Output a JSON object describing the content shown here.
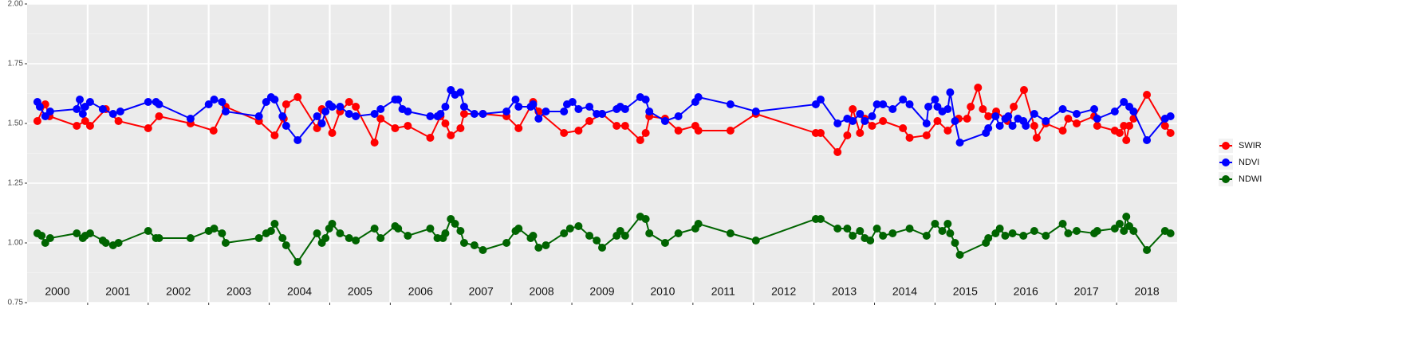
{
  "chart_data": {
    "type": "line",
    "grid": true,
    "legend": "right",
    "xlim": [
      2000,
      2019
    ],
    "xticks": [
      {
        "value": 2000.5,
        "label": "2000"
      },
      {
        "value": 2001.5,
        "label": "2001"
      },
      {
        "value": 2002.5,
        "label": "2002"
      },
      {
        "value": 2003.5,
        "label": "2003"
      },
      {
        "value": 2004.5,
        "label": "2004"
      },
      {
        "value": 2005.5,
        "label": "2005"
      },
      {
        "value": 2006.5,
        "label": "2006"
      },
      {
        "value": 2007.5,
        "label": "2007"
      },
      {
        "value": 2008.5,
        "label": "2008"
      },
      {
        "value": 2009.5,
        "label": "2009"
      },
      {
        "value": 2010.5,
        "label": "2010"
      },
      {
        "value": 2011.5,
        "label": "2011"
      },
      {
        "value": 2012.5,
        "label": "2012"
      },
      {
        "value": 2013.5,
        "label": "2013"
      },
      {
        "value": 2014.5,
        "label": "2014"
      },
      {
        "value": 2015.5,
        "label": "2015"
      },
      {
        "value": 2016.5,
        "label": "2016"
      },
      {
        "value": 2017.5,
        "label": "2017"
      },
      {
        "value": 2018.5,
        "label": "2018"
      }
    ],
    "ylim": [
      0.75,
      2.0
    ],
    "yticks": [
      {
        "value": 0.75,
        "label": "0.75"
      },
      {
        "value": 1,
        "label": "1.00"
      },
      {
        "value": 1.25,
        "label": "1.25"
      },
      {
        "value": 1.5,
        "label": "1.50"
      },
      {
        "value": 1.75,
        "label": "1.75"
      },
      {
        "value": 2,
        "label": "2.00"
      }
    ],
    "series": [
      {
        "name": "SWIR",
        "color": "#ff0000",
        "x": [
          2000.17,
          2000.3,
          2000.37,
          2000.82,
          2000.96,
          2001.04,
          2001.3,
          2001.51,
          2002.0,
          2002.18,
          2002.7,
          2003.08,
          2003.28,
          2003.83,
          2004.09,
          2004.24,
          2004.28,
          2004.47,
          2004.79,
          2004.87,
          2005.04,
          2005.17,
          2005.32,
          2005.43,
          2005.74,
          2005.84,
          2006.08,
          2006.29,
          2006.66,
          2006.83,
          2006.91,
          2007.0,
          2007.16,
          2007.22,
          2007.53,
          2007.92,
          2008.12,
          2008.36,
          2008.45,
          2008.87,
          2009.11,
          2009.29,
          2009.5,
          2009.74,
          2009.88,
          2010.13,
          2010.22,
          2010.28,
          2010.54,
          2010.76,
          2011.04,
          2011.09,
          2011.62,
          2012.04,
          2013.03,
          2013.11,
          2013.39,
          2013.55,
          2013.64,
          2013.76,
          2013.84,
          2013.96,
          2014.14,
          2014.47,
          2014.58,
          2014.86,
          2015.04,
          2015.21,
          2015.39,
          2015.53,
          2015.59,
          2015.71,
          2015.79,
          2015.88,
          2016.01,
          2016.2,
          2016.3,
          2016.47,
          2016.64,
          2016.68,
          2016.83,
          2017.11,
          2017.2,
          2017.34,
          2017.63,
          2017.68,
          2017.97,
          2018.05,
          2018.12,
          2018.16,
          2018.21,
          2018.28,
          2018.5,
          2018.8,
          2018.89
        ],
        "values": [
          1.51,
          1.58,
          1.53,
          1.49,
          1.51,
          1.49,
          1.56,
          1.51,
          1.48,
          1.53,
          1.5,
          1.47,
          1.57,
          1.51,
          1.45,
          1.52,
          1.58,
          1.61,
          1.48,
          1.56,
          1.46,
          1.55,
          1.59,
          1.57,
          1.42,
          1.52,
          1.48,
          1.49,
          1.44,
          1.53,
          1.5,
          1.45,
          1.48,
          1.54,
          1.54,
          1.53,
          1.48,
          1.59,
          1.55,
          1.46,
          1.47,
          1.51,
          1.54,
          1.49,
          1.49,
          1.43,
          1.46,
          1.53,
          1.52,
          1.47,
          1.49,
          1.47,
          1.47,
          1.54,
          1.46,
          1.46,
          1.38,
          1.45,
          1.56,
          1.46,
          1.52,
          1.49,
          1.51,
          1.48,
          1.44,
          1.45,
          1.51,
          1.47,
          1.52,
          1.52,
          1.57,
          1.65,
          1.56,
          1.53,
          1.55,
          1.51,
          1.57,
          1.64,
          1.49,
          1.44,
          1.5,
          1.47,
          1.52,
          1.5,
          1.53,
          1.49,
          1.47,
          1.46,
          1.49,
          1.43,
          1.49,
          1.52,
          1.62,
          1.49,
          1.46
        ]
      },
      {
        "name": "NDVI",
        "color": "#0000ff",
        "x": [
          2000.17,
          2000.21,
          2000.3,
          2000.38,
          2000.82,
          2000.87,
          2000.92,
          2000.96,
          2001.04,
          2001.25,
          2001.42,
          2001.54,
          2002.0,
          2002.13,
          2002.18,
          2002.7,
          2003.0,
          2003.09,
          2003.22,
          2003.28,
          2003.83,
          2003.95,
          2004.03,
          2004.09,
          2004.22,
          2004.28,
          2004.47,
          2004.79,
          2004.87,
          2004.93,
          2004.99,
          2005.04,
          2005.17,
          2005.32,
          2005.43,
          2005.74,
          2005.84,
          2006.08,
          2006.13,
          2006.2,
          2006.29,
          2006.66,
          2006.78,
          2006.83,
          2006.91,
          2007.0,
          2007.07,
          2007.16,
          2007.22,
          2007.39,
          2007.53,
          2007.92,
          2008.07,
          2008.12,
          2008.32,
          2008.36,
          2008.45,
          2008.57,
          2008.87,
          2008.92,
          2009.01,
          2009.11,
          2009.29,
          2009.41,
          2009.5,
          2009.74,
          2009.8,
          2009.88,
          2010.13,
          2010.22,
          2010.28,
          2010.54,
          2010.76,
          2011.04,
          2011.09,
          2011.62,
          2012.04,
          2013.03,
          2013.11,
          2013.39,
          2013.55,
          2013.64,
          2013.76,
          2013.84,
          2013.96,
          2014.04,
          2014.14,
          2014.3,
          2014.47,
          2014.58,
          2014.86,
          2014.89,
          2015.0,
          2015.04,
          2015.12,
          2015.21,
          2015.25,
          2015.33,
          2015.41,
          2015.84,
          2015.88,
          2016.0,
          2016.07,
          2016.16,
          2016.21,
          2016.28,
          2016.37,
          2016.46,
          2016.5,
          2016.64,
          2016.83,
          2017.11,
          2017.34,
          2017.63,
          2017.68,
          2017.97,
          2018.12,
          2018.21,
          2018.28,
          2018.5,
          2018.8,
          2018.89
        ],
        "values": [
          1.59,
          1.57,
          1.53,
          1.55,
          1.56,
          1.6,
          1.54,
          1.57,
          1.59,
          1.56,
          1.54,
          1.55,
          1.59,
          1.59,
          1.58,
          1.52,
          1.58,
          1.6,
          1.59,
          1.55,
          1.53,
          1.59,
          1.61,
          1.6,
          1.53,
          1.49,
          1.43,
          1.53,
          1.5,
          1.55,
          1.58,
          1.57,
          1.57,
          1.54,
          1.53,
          1.54,
          1.56,
          1.6,
          1.6,
          1.56,
          1.55,
          1.53,
          1.53,
          1.54,
          1.57,
          1.64,
          1.62,
          1.63,
          1.57,
          1.54,
          1.54,
          1.55,
          1.6,
          1.57,
          1.57,
          1.58,
          1.52,
          1.55,
          1.55,
          1.58,
          1.59,
          1.56,
          1.57,
          1.54,
          1.54,
          1.56,
          1.57,
          1.56,
          1.61,
          1.6,
          1.55,
          1.51,
          1.53,
          1.59,
          1.61,
          1.58,
          1.55,
          1.58,
          1.6,
          1.5,
          1.52,
          1.51,
          1.54,
          1.51,
          1.53,
          1.58,
          1.58,
          1.56,
          1.6,
          1.58,
          1.5,
          1.57,
          1.6,
          1.57,
          1.55,
          1.56,
          1.63,
          1.51,
          1.42,
          1.46,
          1.48,
          1.53,
          1.49,
          1.52,
          1.53,
          1.49,
          1.52,
          1.51,
          1.49,
          1.54,
          1.51,
          1.56,
          1.54,
          1.56,
          1.52,
          1.55,
          1.59,
          1.57,
          1.55,
          1.43,
          1.52,
          1.53
        ]
      },
      {
        "name": "NDWI",
        "color": "#006400",
        "x": [
          2000.17,
          2000.24,
          2000.3,
          2000.38,
          2000.82,
          2000.92,
          2000.96,
          2001.04,
          2001.25,
          2001.3,
          2001.42,
          2001.51,
          2002.0,
          2002.13,
          2002.18,
          2002.7,
          2003.0,
          2003.09,
          2003.22,
          2003.28,
          2003.83,
          2003.95,
          2004.03,
          2004.09,
          2004.22,
          2004.28,
          2004.47,
          2004.79,
          2004.87,
          2004.93,
          2004.99,
          2005.04,
          2005.17,
          2005.32,
          2005.43,
          2005.74,
          2005.84,
          2006.08,
          2006.13,
          2006.29,
          2006.66,
          2006.78,
          2006.87,
          2006.91,
          2007.0,
          2007.07,
          2007.16,
          2007.22,
          2007.39,
          2007.53,
          2007.92,
          2008.07,
          2008.12,
          2008.32,
          2008.36,
          2008.45,
          2008.57,
          2008.87,
          2008.97,
          2009.11,
          2009.29,
          2009.41,
          2009.5,
          2009.74,
          2009.8,
          2009.88,
          2010.13,
          2010.22,
          2010.28,
          2010.54,
          2010.76,
          2011.04,
          2011.09,
          2011.62,
          2012.04,
          2013.03,
          2013.11,
          2013.39,
          2013.55,
          2013.64,
          2013.76,
          2013.84,
          2013.93,
          2014.04,
          2014.14,
          2014.3,
          2014.58,
          2014.86,
          2015.0,
          2015.12,
          2015.21,
          2015.25,
          2015.33,
          2015.41,
          2015.84,
          2015.88,
          2016.0,
          2016.07,
          2016.16,
          2016.28,
          2016.46,
          2016.64,
          2016.83,
          2017.11,
          2017.2,
          2017.34,
          2017.63,
          2017.68,
          2017.97,
          2018.05,
          2018.12,
          2018.16,
          2018.21,
          2018.28,
          2018.5,
          2018.8,
          2018.89
        ],
        "values": [
          1.04,
          1.03,
          1.0,
          1.02,
          1.04,
          1.02,
          1.03,
          1.04,
          1.01,
          1.0,
          0.99,
          1.0,
          1.05,
          1.02,
          1.02,
          1.02,
          1.05,
          1.06,
          1.04,
          1.0,
          1.02,
          1.04,
          1.05,
          1.08,
          1.02,
          0.99,
          0.92,
          1.04,
          1.0,
          1.02,
          1.06,
          1.08,
          1.04,
          1.02,
          1.01,
          1.06,
          1.02,
          1.07,
          1.06,
          1.03,
          1.06,
          1.02,
          1.02,
          1.04,
          1.1,
          1.08,
          1.05,
          1.0,
          0.99,
          0.97,
          1.0,
          1.05,
          1.06,
          1.02,
          1.03,
          0.98,
          0.99,
          1.04,
          1.06,
          1.07,
          1.03,
          1.01,
          0.98,
          1.03,
          1.05,
          1.03,
          1.11,
          1.1,
          1.04,
          1.0,
          1.04,
          1.06,
          1.08,
          1.04,
          1.01,
          1.1,
          1.1,
          1.06,
          1.06,
          1.03,
          1.05,
          1.02,
          1.01,
          1.06,
          1.03,
          1.04,
          1.06,
          1.03,
          1.08,
          1.05,
          1.08,
          1.04,
          1.0,
          0.95,
          1.0,
          1.02,
          1.04,
          1.06,
          1.03,
          1.04,
          1.03,
          1.05,
          1.03,
          1.08,
          1.04,
          1.05,
          1.04,
          1.05,
          1.06,
          1.08,
          1.05,
          1.11,
          1.07,
          1.05,
          0.97,
          1.05,
          1.04
        ]
      }
    ]
  }
}
